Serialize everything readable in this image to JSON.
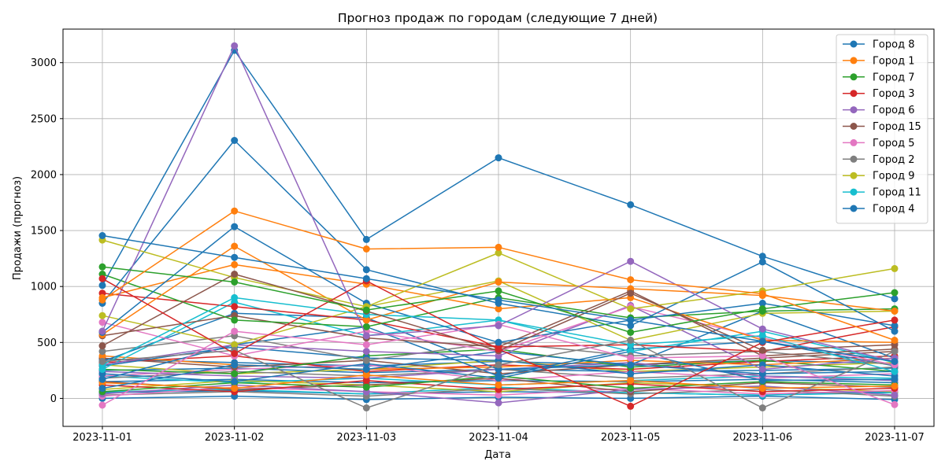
{
  "chart_data": {
    "type": "line",
    "title": "Прогноз продаж по городам (следующие 7 дней)",
    "xlabel": "Дата",
    "ylabel": "Продажи (прогноз)",
    "categories": [
      "2023-11-01",
      "2023-11-02",
      "2023-11-03",
      "2023-11-04",
      "2023-11-05",
      "2023-11-06",
      "2023-11-07"
    ],
    "ylim": [
      -250,
      3300
    ],
    "yticks": [
      0,
      500,
      1000,
      1500,
      2000,
      2500,
      3000
    ],
    "grid": true,
    "legend_position": "top-right",
    "series": [
      {
        "name": "Город 8",
        "color": "#1f77b4",
        "values": [
          1455,
          1260,
          1070,
          880,
          700,
          510,
          330
        ]
      },
      {
        "name": "Город 1",
        "color": "#ff7f0e",
        "values": [
          880,
          1675,
          1335,
          1350,
          1060,
          935,
          520
        ]
      },
      {
        "name": "Город 7",
        "color": "#2ca02c",
        "values": [
          1175,
          1040,
          790,
          960,
          590,
          800,
          945
        ]
      },
      {
        "name": "Город 3",
        "color": "#d62728",
        "values": [
          1070,
          400,
          1050,
          440,
          -70,
          500,
          700
        ]
      },
      {
        "name": "Город 6",
        "color": "#9467bd",
        "values": [
          600,
          3150,
          560,
          650,
          1225,
          620,
          330
        ]
      },
      {
        "name": "Город 15",
        "color": "#8c564b",
        "values": [
          470,
          1110,
          780,
          425,
          940,
          430,
          480
        ]
      },
      {
        "name": "Город 5",
        "color": "#e377c2",
        "values": [
          -60,
          600,
          480,
          660,
          360,
          380,
          -55
        ]
      },
      {
        "name": "Город 2",
        "color": "#7f7f7f",
        "values": [
          330,
          430,
          -85,
          300,
          520,
          -85,
          420
        ]
      },
      {
        "name": "Город 9",
        "color": "#bcbd22",
        "values": [
          1415,
          1080,
          820,
          1300,
          800,
          960,
          1160
        ]
      },
      {
        "name": "Город 11",
        "color": "#17becf",
        "values": [
          300,
          900,
          750,
          700,
          480,
          560,
          240
        ]
      },
      {
        "name": "Город 4",
        "color": "#1f77b4",
        "values": [
          1010,
          3110,
          1420,
          2150,
          1730,
          1270,
          890
        ]
      },
      {
        "name": "",
        "color": "#1f77b4",
        "values": [
          850,
          2305,
          1150,
          850,
          650,
          1220,
          600
        ]
      },
      {
        "name": "",
        "color": "#1f77b4",
        "values": [
          590,
          1535,
          850,
          500,
          700,
          850,
          650
        ]
      },
      {
        "name": "",
        "color": "#ff7f0e",
        "values": [
          570,
          1360,
          700,
          1040,
          980,
          920,
          780
        ]
      },
      {
        "name": "",
        "color": "#ff7f0e",
        "values": [
          900,
          1195,
          1020,
          800,
          900,
          520,
          500
        ]
      },
      {
        "name": "",
        "color": "#2ca02c",
        "values": [
          1110,
          700,
          640,
          900,
          720,
          780,
          800
        ]
      },
      {
        "name": "",
        "color": "#d62728",
        "values": [
          940,
          820,
          700,
          460,
          480,
          420,
          640
        ]
      },
      {
        "name": "",
        "color": "#8c564b",
        "values": [
          560,
          740,
          540,
          460,
          960,
          380,
          440
        ]
      },
      {
        "name": "",
        "color": "#bcbd22",
        "values": [
          740,
          480,
          820,
          1050,
          520,
          760,
          780
        ]
      },
      {
        "name": "",
        "color": "#e377c2",
        "values": [
          680,
          380,
          600,
          420,
          820,
          540,
          300
        ]
      },
      {
        "name": "",
        "color": "#9467bd",
        "values": [
          300,
          480,
          420,
          380,
          830,
          260,
          360
        ]
      },
      {
        "name": "",
        "color": "#7f7f7f",
        "values": [
          420,
          560,
          340,
          500,
          380,
          420,
          300
        ]
      },
      {
        "name": "",
        "color": "#17becf",
        "values": [
          260,
          860,
          560,
          700,
          420,
          600,
          320
        ]
      },
      {
        "name": "",
        "color": "#1f77b4",
        "values": [
          330,
          760,
          720,
          260,
          300,
          780,
          360
        ]
      },
      {
        "name": "",
        "color": "#1f77b4",
        "values": [
          170,
          480,
          640,
          200,
          440,
          510,
          290
        ]
      },
      {
        "name": "",
        "color": "#1f77b4",
        "values": [
          290,
          460,
          360,
          340,
          220,
          300,
          200
        ]
      },
      {
        "name": "",
        "color": "#1f77b4",
        "values": [
          90,
          300,
          260,
          420,
          300,
          220,
          240
        ]
      },
      {
        "name": "",
        "color": "#1f77b4",
        "values": [
          220,
          150,
          310,
          180,
          420,
          160,
          170
        ]
      },
      {
        "name": "",
        "color": "#ff7f0e",
        "values": [
          380,
          300,
          260,
          280,
          340,
          300,
          360
        ]
      },
      {
        "name": "",
        "color": "#ff7f0e",
        "values": [
          140,
          90,
          210,
          120,
          160,
          90,
          110
        ]
      },
      {
        "name": "",
        "color": "#2ca02c",
        "values": [
          260,
          220,
          380,
          440,
          280,
          340,
          240
        ]
      },
      {
        "name": "",
        "color": "#2ca02c",
        "values": [
          60,
          140,
          100,
          200,
          90,
          150,
          120
        ]
      },
      {
        "name": "",
        "color": "#d62728",
        "values": [
          320,
          380,
          240,
          300,
          260,
          330,
          380
        ]
      },
      {
        "name": "",
        "color": "#d62728",
        "values": [
          120,
          60,
          160,
          80,
          130,
          60,
          90
        ]
      },
      {
        "name": "",
        "color": "#9467bd",
        "values": [
          240,
          200,
          180,
          260,
          320,
          200,
          160
        ]
      },
      {
        "name": "",
        "color": "#9467bd",
        "values": [
          40,
          120,
          60,
          -40,
          80,
          110,
          30
        ]
      },
      {
        "name": "",
        "color": "#8c564b",
        "values": [
          360,
          280,
          340,
          220,
          300,
          360,
          420
        ]
      },
      {
        "name": "",
        "color": "#8c564b",
        "values": [
          150,
          80,
          120,
          180,
          60,
          140,
          100
        ]
      },
      {
        "name": "",
        "color": "#e377c2",
        "values": [
          200,
          260,
          300,
          160,
          240,
          180,
          220
        ]
      },
      {
        "name": "",
        "color": "#e377c2",
        "values": [
          20,
          100,
          60,
          30,
          90,
          40,
          70
        ]
      },
      {
        "name": "",
        "color": "#7f7f7f",
        "values": [
          180,
          240,
          200,
          260,
          180,
          220,
          280
        ]
      },
      {
        "name": "",
        "color": "#7f7f7f",
        "values": [
          30,
          60,
          20,
          90,
          40,
          80,
          20
        ]
      },
      {
        "name": "",
        "color": "#bcbd22",
        "values": [
          300,
          220,
          260,
          340,
          240,
          280,
          320
        ]
      },
      {
        "name": "",
        "color": "#bcbd22",
        "values": [
          80,
          160,
          120,
          60,
          140,
          100,
          60
        ]
      },
      {
        "name": "",
        "color": "#17becf",
        "values": [
          200,
          140,
          180,
          120,
          160,
          200,
          180
        ]
      },
      {
        "name": "",
        "color": "#17becf",
        "values": [
          60,
          80,
          40,
          100,
          50,
          30,
          50
        ]
      },
      {
        "name": "",
        "color": "#1f77b4",
        "values": [
          350,
          320,
          290,
          330,
          300,
          340,
          310
        ]
      },
      {
        "name": "",
        "color": "#1f77b4",
        "values": [
          250,
          270,
          230,
          260,
          240,
          250,
          270
        ]
      },
      {
        "name": "",
        "color": "#1f77b4",
        "values": [
          150,
          170,
          140,
          160,
          150,
          170,
          140
        ]
      },
      {
        "name": "",
        "color": "#1f77b4",
        "values": [
          50,
          70,
          40,
          60,
          50,
          30,
          60
        ]
      },
      {
        "name": "",
        "color": "#1f77b4",
        "values": [
          0,
          20,
          -10,
          10,
          0,
          20,
          -10
        ]
      }
    ]
  }
}
